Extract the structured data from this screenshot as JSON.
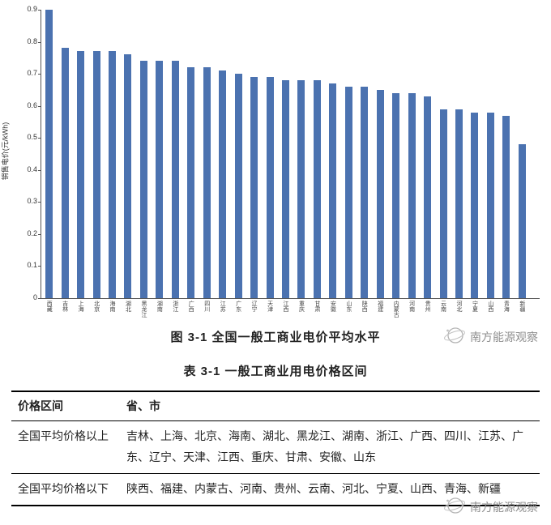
{
  "chart_data": {
    "type": "bar",
    "title": "图 3-1 全国一般工商业电价平均水平",
    "ylabel": "销售电价(元/kWh)",
    "ylim": [
      0,
      0.9
    ],
    "yticks": [
      "0",
      "0.1",
      "0.2",
      "0.3",
      "0.4",
      "0.5",
      "0.6",
      "0.7",
      "0.8",
      "0.9"
    ],
    "grid": false,
    "legend": "none",
    "bar_color": "#4b72b0",
    "categories": [
      "西藏",
      "吉林",
      "上海",
      "北京",
      "海南",
      "湖北",
      "黑龙江",
      "湖南",
      "浙江",
      "广西",
      "四川",
      "江苏",
      "广东",
      "辽宁",
      "天津",
      "江西",
      "重庆",
      "甘肃",
      "安徽",
      "山东",
      "陕西",
      "福建",
      "内蒙古",
      "河南",
      "贵州",
      "云南",
      "河北",
      "宁夏",
      "山西",
      "青海",
      "新疆"
    ],
    "values": [
      0.9,
      0.78,
      0.77,
      0.77,
      0.77,
      0.76,
      0.74,
      0.74,
      0.74,
      0.72,
      0.72,
      0.71,
      0.7,
      0.69,
      0.69,
      0.68,
      0.68,
      0.68,
      0.67,
      0.66,
      0.66,
      0.65,
      0.64,
      0.64,
      0.63,
      0.59,
      0.59,
      0.58,
      0.58,
      0.57,
      0.48
    ]
  },
  "figure": {
    "caption": "图 3-1  全国一般工商业电价平均水平"
  },
  "table": {
    "caption": "表 3-1  一般工商业用电价格区间",
    "headers": [
      "价格区间",
      "省、市"
    ],
    "rows": [
      [
        "全国平均价格以上",
        "吉林、上海、北京、海南、湖北、黑龙江、湖南、浙江、广西、四川、江苏、广东、辽宁、天津、江西、重庆、甘肃、安徽、山东"
      ],
      [
        "全国平均价格以下",
        "陕西、福建、内蒙古、河南、贵州、云南、河北、宁夏、山西、青海、新疆"
      ]
    ]
  },
  "watermark": {
    "text": "南方能源观察"
  }
}
